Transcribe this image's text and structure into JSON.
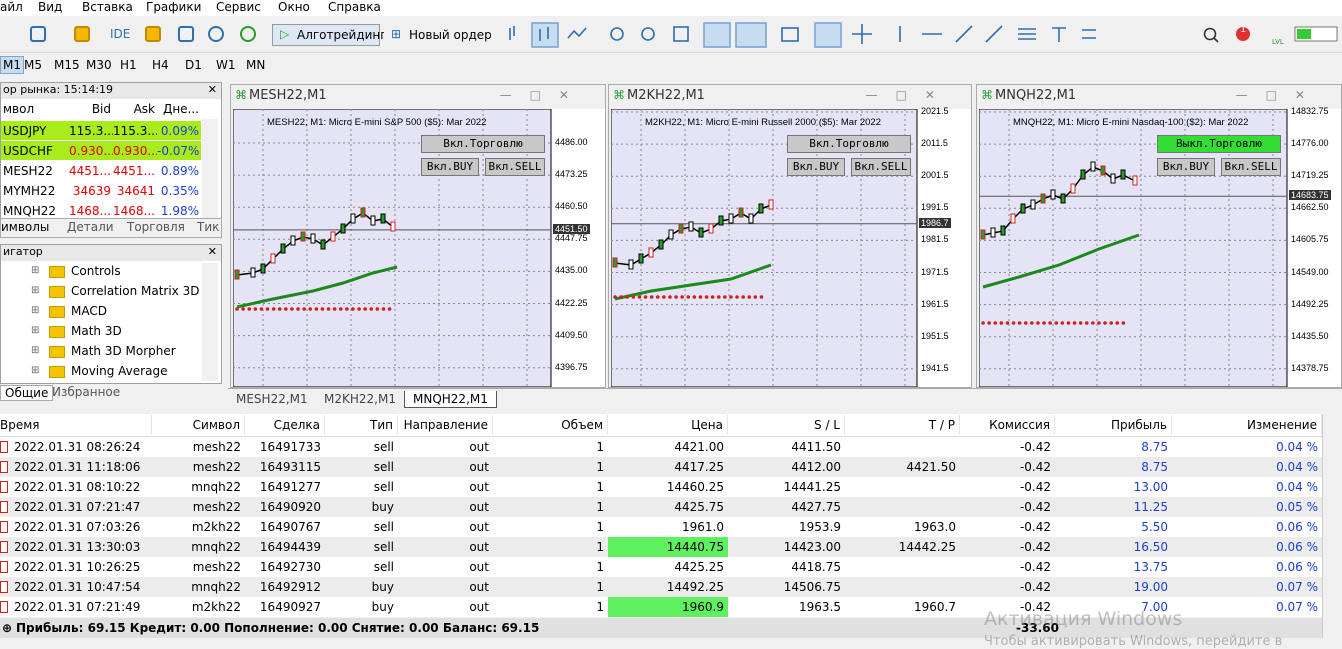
{
  "menu": [
    "айл",
    "Вид",
    "Вставка",
    "Графики",
    "Сервис",
    "Окно",
    "Справка"
  ],
  "toolbar": {
    "ide": "IDE",
    "algo": "Алготрейдинг",
    "order": "Новый ордер",
    "lvl": "LVL",
    "badge": "1"
  },
  "timeframes": [
    "M1",
    "M5",
    "M15",
    "M30",
    "H1",
    "H4",
    "D1",
    "W1",
    "MN"
  ],
  "market_watch": {
    "title": "ор рынка: 15:14:19",
    "columns": [
      "мвол",
      "Bid",
      "Ask",
      "Дне..."
    ],
    "rows": [
      {
        "cells": [
          "USDJPY",
          "115.3...",
          "115.3...",
          "0.09%"
        ],
        "color": "#000000",
        "background": "#a8ec1c"
      },
      {
        "cells": [
          "USDCHF",
          "0.930...",
          "0.930...",
          "-0.07%"
        ],
        "color": "#e00000",
        "background": "#a8ec1c"
      },
      {
        "cells": [
          "MESH22",
          "4451...",
          "4451...",
          "0.89%"
        ],
        "color": "#e00000"
      },
      {
        "cells": [
          "MYMH22",
          "34639",
          "34641",
          "0.35%"
        ],
        "color": "#e00000"
      },
      {
        "cells": [
          "MNQH22",
          "1468...",
          "1468...",
          "1.98%"
        ],
        "color": "#e00000"
      }
    ],
    "tabs": [
      "имволы",
      "Детали",
      "Торговля",
      "Тик"
    ]
  },
  "navigator": {
    "title": "игатор",
    "items": [
      "Controls",
      "Correlation Matrix 3D",
      "MACD",
      "Math 3D",
      "Math 3D Morpher",
      "Moving Average"
    ],
    "tabs": [
      "Общие",
      "Избранное"
    ]
  },
  "charts": [
    {
      "title": "MESH22,M1",
      "description": "MESH22, M1:  Micro E-mini S&P 500 ($5): Mar 2022",
      "trade_button": "Вкл.Торговлю",
      "buy_button": "Вкл.BUY",
      "sell_button": "Вкл.SELL",
      "trade_button_color": "#c8c8c8",
      "price_ticks": [
        "4486.00",
        "4473.25",
        "4460.50",
        "4447.75",
        "4435.00",
        "4422.25",
        "4409.50",
        "4396.75"
      ],
      "current_price": "4451.50"
    },
    {
      "title": "M2KH22,M1",
      "description": "M2KH22, M1:  Micro E-mini Russell 2000 ($5): Mar 2022",
      "trade_button": "Вкл.Торговлю",
      "buy_button": "Вкл.BUY",
      "sell_button": "Вкл.SELL",
      "trade_button_color": "#c8c8c8",
      "price_ticks": [
        "2021.5",
        "2011.5",
        "2001.5",
        "1991.5",
        "1981.5",
        "1971.5",
        "1961.5",
        "1951.5",
        "1941.5"
      ],
      "current_price": "1986.7"
    },
    {
      "title": "MNQH22,M1",
      "description": "MNQH22, M1:  Micro E-mini Nasdaq-100 ($2): Mar 2022",
      "trade_button": "Выкл.Торговлю",
      "buy_button": "Вкл.BUY",
      "sell_button": "Вкл.SELL",
      "trade_button_color": "#33dd33",
      "price_ticks": [
        "14832.75",
        "14776.00",
        "14719.25",
        "14662.50",
        "14605.75",
        "14549.00",
        "14492.25",
        "14435.50",
        "14378.75"
      ],
      "current_price": "14683.75"
    }
  ],
  "chart_tabs": [
    "MESH22,M1",
    "M2KH22,M1",
    "MNQH22,M1"
  ],
  "history": {
    "columns": [
      "Время",
      "Символ",
      "Сделка",
      "Тип",
      "Направление",
      "Объем",
      "Цена",
      "S / L",
      "T / P",
      "Комиссия",
      "Прибыль",
      "Изменение"
    ],
    "rows": [
      {
        "cells": [
          "2022.01.31 08:26:24",
          "mesh22",
          "16491733",
          "sell",
          "out",
          "1",
          "4421.00",
          "4411.50",
          null,
          "-0.42",
          "8.75",
          "0.04 %"
        ]
      },
      {
        "cells": [
          "2022.01.31 11:18:06",
          "mesh22",
          "16493115",
          "sell",
          "out",
          "1",
          "4417.25",
          "4412.00",
          "4421.50",
          "-0.42",
          "8.75",
          "0.04 %"
        ]
      },
      {
        "cells": [
          "2022.01.31 08:10:22",
          "mnqh22",
          "16491277",
          "sell",
          "out",
          "1",
          "14460.25",
          "14441.25",
          null,
          "-0.42",
          "13.00",
          "0.04 %"
        ]
      },
      {
        "cells": [
          "2022.01.31 07:21:47",
          "mesh22",
          "16490920",
          "buy",
          "out",
          "1",
          "4425.75",
          "4427.75",
          null,
          "-0.42",
          "11.25",
          "0.05 %"
        ]
      },
      {
        "cells": [
          "2022.01.31 07:03:26",
          "m2kh22",
          "16490767",
          "sell",
          "out",
          "1",
          "1961.0",
          "1953.9",
          "1963.0",
          "-0.42",
          "5.50",
          "0.06 %"
        ]
      },
      {
        "cells": [
          "2022.01.31 13:30:03",
          "mnqh22",
          "16494439",
          "sell",
          "out",
          "1",
          "14440.75",
          "14423.00",
          "14442.25",
          "-0.42",
          "16.50",
          "0.06 %"
        ],
        "price_highlight": "#5ef05e"
      },
      {
        "cells": [
          "2022.01.31 10:26:25",
          "mesh22",
          "16492730",
          "sell",
          "out",
          "1",
          "4425.25",
          "4418.75",
          null,
          "-0.42",
          "13.75",
          "0.06 %"
        ]
      },
      {
        "cells": [
          "2022.01.31 10:47:54",
          "mnqh22",
          "16492912",
          "buy",
          "out",
          "1",
          "14492.25",
          "14506.75",
          null,
          "-0.42",
          "19.00",
          "0.07 %"
        ]
      },
      {
        "cells": [
          "2022.01.31 07:21:49",
          "m2kh22",
          "16490927",
          "buy",
          "out",
          "1",
          "1960.9",
          "1963.5",
          "1960.7",
          "-0.42",
          "7.00",
          "0.07 %"
        ],
        "price_highlight": "#5ef05e"
      }
    ],
    "footer": "Прибыль: 69.15  Кредит: 0.00  Пополнение: 0.00  Снятие: 0.00  Баланс: 69.15",
    "footer_total": "-33.60"
  },
  "watermark": {
    "title": "Активация Windows",
    "text": "Чтобы активировать Windows, перейдите в"
  }
}
